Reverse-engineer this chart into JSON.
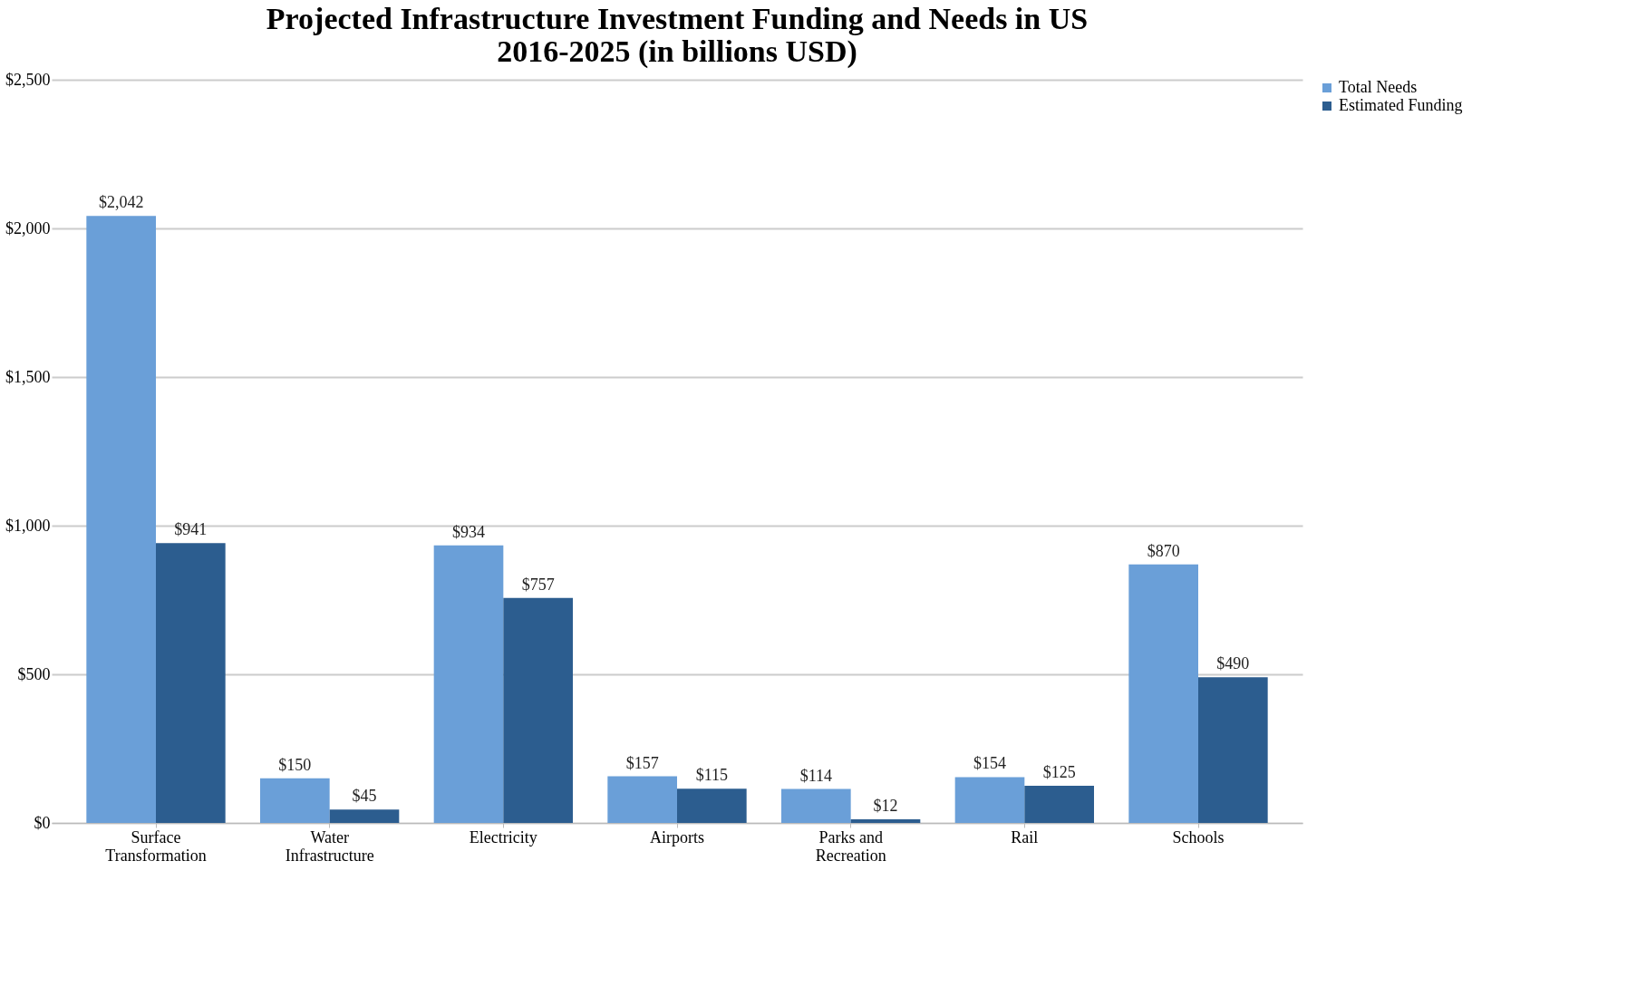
{
  "chart_data": {
    "type": "bar",
    "title": "Projected Infrastructure Investment Funding and Needs in US 2016-2025 (in billions USD)",
    "categories": [
      "Surface Transformation",
      "Water Infrastructure",
      "Electricity",
      "Airports",
      "Parks and Recreation",
      "Rail",
      "Schools"
    ],
    "series": [
      {
        "name": "Total Needs",
        "color": "#6a9fd8",
        "values": [
          2042,
          150,
          934,
          157,
          114,
          154,
          870
        ],
        "value_labels": [
          "$2,042",
          "$150",
          "$934",
          "$157",
          "$114",
          "$154",
          "$870"
        ]
      },
      {
        "name": "Estimated Funding",
        "color": "#2c5d8f",
        "values": [
          941,
          45,
          757,
          115,
          12,
          125,
          490
        ],
        "value_labels": [
          "$941",
          "$45",
          "$757",
          "$115",
          "$12",
          "$125",
          "$490"
        ]
      }
    ],
    "ylim": [
      0,
      2500
    ],
    "yticks": [
      {
        "value": 0,
        "label": "$0"
      },
      {
        "value": 500,
        "label": "$500"
      },
      {
        "value": 1000,
        "label": "$1,000"
      },
      {
        "value": 1500,
        "label": "$1,500"
      },
      {
        "value": 2000,
        "label": "$2,000"
      },
      {
        "value": 2500,
        "label": "$2,500"
      }
    ],
    "grid": "y",
    "legend": "right"
  }
}
